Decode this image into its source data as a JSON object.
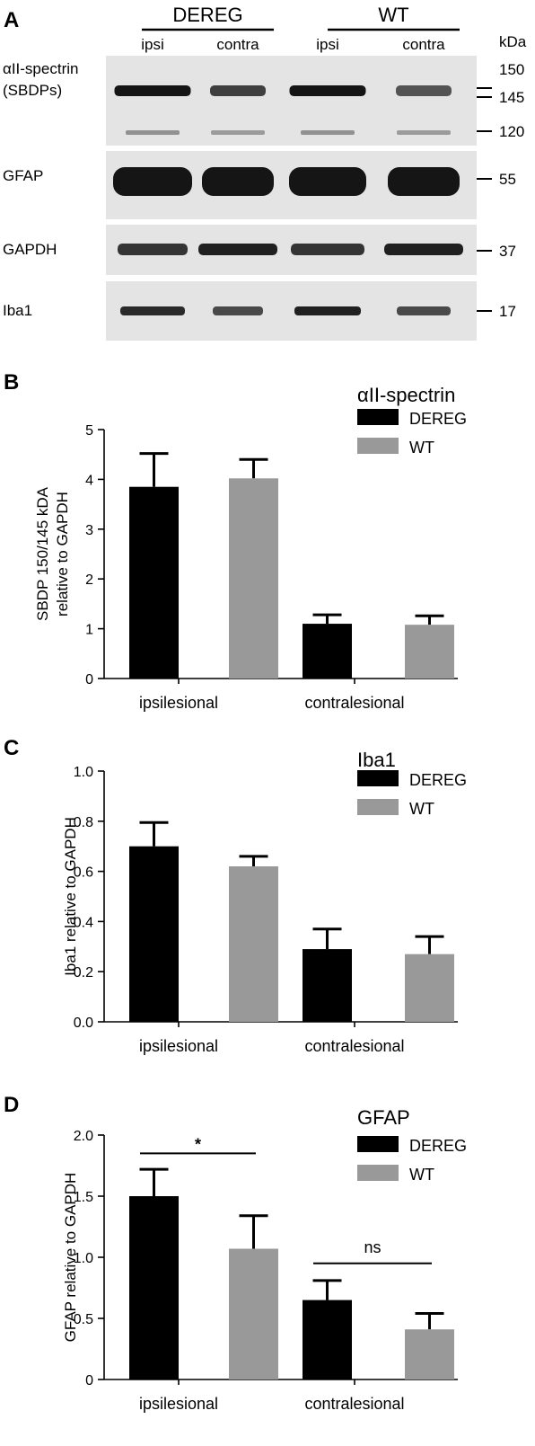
{
  "blot": {
    "panel": "A",
    "groups": [
      {
        "label": "DEREG",
        "lanes": [
          "ipsi",
          "contra"
        ]
      },
      {
        "label": "WT",
        "lanes": [
          "ipsi",
          "contra"
        ]
      }
    ],
    "kda_header": "kDa",
    "rows": [
      {
        "label_lines": [
          "αII-spectrin",
          "(SBDPs)"
        ],
        "markers": [
          "150",
          "145",
          "120"
        ]
      },
      {
        "label_lines": [
          "GFAP"
        ],
        "markers": [
          "55"
        ]
      },
      {
        "label_lines": [
          "GAPDH"
        ],
        "markers": [
          "37"
        ]
      },
      {
        "label_lines": [
          "Iba1"
        ],
        "markers": [
          "17"
        ]
      }
    ],
    "colors": {
      "membrane": "#e4e4e4",
      "band": "#151515"
    }
  },
  "chart_data": [
    {
      "panel": "B",
      "type": "bar",
      "title": "αII-spectrin",
      "ylabel_lines": [
        "SBDP 150/145 kDA",
        "relative to GAPDH"
      ],
      "categories": [
        "ipsilesional",
        "contralesional"
      ],
      "ylim": [
        0,
        5
      ],
      "yticks": [
        "0",
        "1",
        "2",
        "3",
        "4",
        "5"
      ],
      "series": [
        {
          "name": "DEREG",
          "color": "#000000",
          "values": [
            3.85,
            1.1
          ],
          "errors": [
            0.67,
            0.18
          ]
        },
        {
          "name": "WT",
          "color": "#999999",
          "values": [
            4.02,
            1.08
          ],
          "errors": [
            0.38,
            0.18
          ]
        }
      ],
      "legend": "top-right",
      "significance": []
    },
    {
      "panel": "C",
      "type": "bar",
      "title": "Iba1",
      "ylabel_lines": [
        "Iba1 relative to GAPDH"
      ],
      "categories": [
        "ipsilesional",
        "contralesional"
      ],
      "ylim": [
        0,
        1
      ],
      "yticks": [
        "0.0",
        "0.2",
        "0.4",
        "0.6",
        "0.8",
        "1.0"
      ],
      "series": [
        {
          "name": "DEREG",
          "color": "#000000",
          "values": [
            0.7,
            0.29
          ],
          "errors": [
            0.095,
            0.08
          ]
        },
        {
          "name": "WT",
          "color": "#999999",
          "values": [
            0.62,
            0.27
          ],
          "errors": [
            0.04,
            0.07
          ]
        }
      ],
      "legend": "top-right",
      "significance": []
    },
    {
      "panel": "D",
      "type": "bar",
      "title": "GFAP",
      "ylabel_lines": [
        "GFAP relative to GAPDH"
      ],
      "categories": [
        "ipsilesional",
        "contralesional"
      ],
      "ylim": [
        0,
        2
      ],
      "yticks": [
        "0",
        "0.5",
        "1.0",
        "1.5",
        "2.0"
      ],
      "series": [
        {
          "name": "DEREG",
          "color": "#000000",
          "values": [
            1.5,
            0.65
          ],
          "errors": [
            0.22,
            0.16
          ]
        },
        {
          "name": "WT",
          "color": "#999999",
          "values": [
            1.07,
            0.41
          ],
          "errors": [
            0.27,
            0.13
          ]
        }
      ],
      "legend": "top-right",
      "significance": [
        {
          "category": 0,
          "label": "*",
          "y": 1.85
        },
        {
          "category": 1,
          "label": "ns",
          "y": 0.95
        }
      ]
    }
  ]
}
